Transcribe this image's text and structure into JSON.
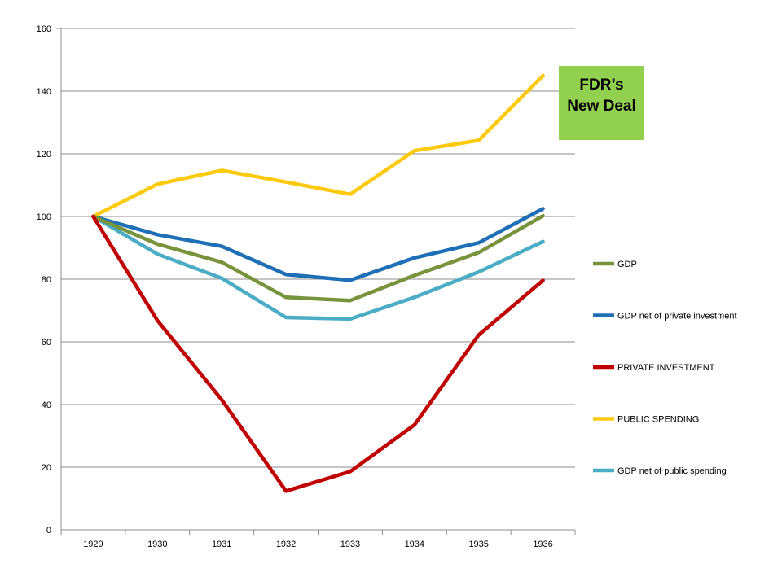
{
  "chart_data": {
    "type": "line",
    "categories": [
      "1929",
      "1930",
      "1931",
      "1932",
      "1933",
      "1934",
      "1935",
      "1936"
    ],
    "ylim": [
      0,
      160
    ],
    "yticks": [
      0,
      20,
      40,
      60,
      80,
      100,
      120,
      140,
      160
    ],
    "grid": true,
    "legend_position": "right",
    "series": [
      {
        "name": "GDP",
        "color": "#77933C",
        "values": [
          100,
          91.2,
          85.4,
          74.2,
          73.2,
          81.2,
          88.5,
          100.2
        ]
      },
      {
        "name": "GDP net of private investment",
        "color": "#1F6FB7",
        "values": [
          100,
          94.2,
          90.5,
          81.5,
          79.7,
          86.8,
          91.6,
          102.5
        ]
      },
      {
        "name": "PRIVATE INVESTMENT",
        "color": "#C00000",
        "values": [
          100,
          66.8,
          41.5,
          12.4,
          18.6,
          33.5,
          62.2,
          79.6
        ]
      },
      {
        "name": "PUBLIC SPENDING",
        "color": "#FFC90E",
        "values": [
          100,
          110.3,
          114.7,
          111.0,
          107.1,
          121.0,
          124.3,
          145.0
        ]
      },
      {
        "name": "GDP net of public spending",
        "color": "#4BACC6",
        "values": [
          100,
          88.0,
          80.3,
          67.8,
          67.3,
          74.2,
          82.3,
          92.0
        ]
      }
    ],
    "annotation": {
      "lines": [
        "FDR’s",
        "New Deal"
      ],
      "fill": "#92D050"
    }
  }
}
